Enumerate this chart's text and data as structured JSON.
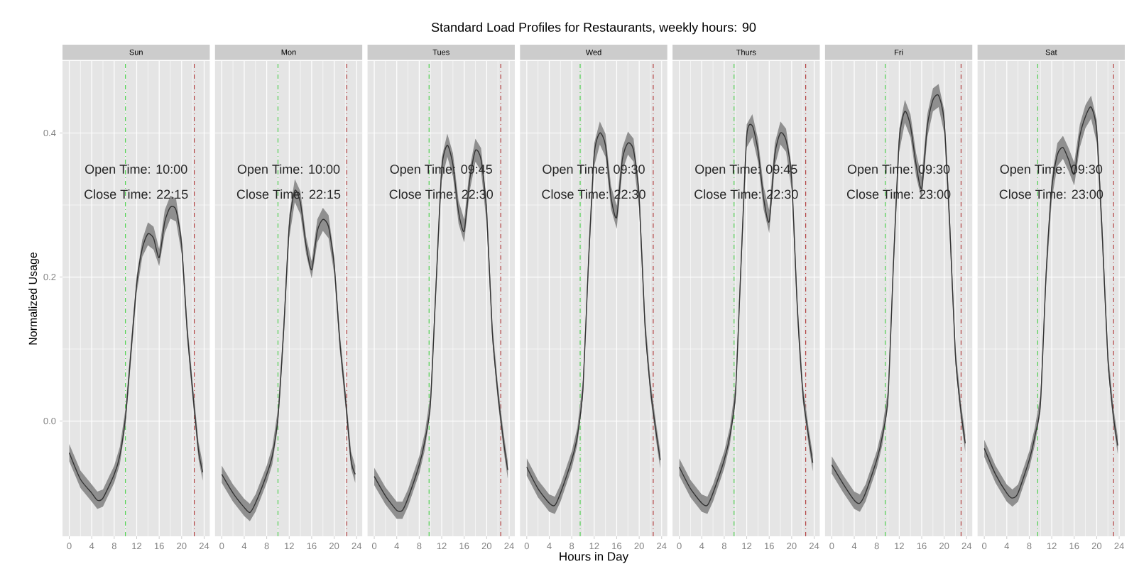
{
  "chart_data": [
    {
      "type": "line",
      "subtitle": "Sun",
      "ylabel": "Normalized Usage",
      "x": [
        0,
        2,
        4,
        5,
        6,
        8,
        9,
        10,
        11,
        12,
        13,
        14,
        15,
        16,
        17,
        18,
        19,
        20,
        21,
        22,
        23,
        23.75
      ],
      "series": [
        {
          "color": "#333333",
          "values": [
            -0.044,
            -0.081,
            -0.1,
            -0.11,
            -0.107,
            -0.074,
            -0.048,
            0.005,
            0.098,
            0.19,
            0.24,
            0.26,
            0.254,
            0.227,
            0.277,
            0.297,
            0.293,
            0.244,
            0.124,
            0.038,
            -0.041,
            -0.071
          ],
          "lower": [
            -0.056,
            -0.093,
            -0.112,
            -0.122,
            -0.119,
            -0.086,
            -0.06,
            -0.007,
            0.086,
            0.178,
            0.228,
            0.244,
            0.238,
            0.215,
            0.261,
            0.281,
            0.277,
            0.232,
            0.112,
            0.026,
            -0.053,
            -0.083
          ],
          "upper": [
            -0.032,
            -0.069,
            -0.088,
            -0.098,
            -0.095,
            -0.062,
            -0.036,
            0.017,
            0.11,
            0.202,
            0.252,
            0.276,
            0.27,
            0.239,
            0.293,
            0.313,
            0.309,
            0.256,
            0.136,
            0.05,
            -0.029,
            -0.059
          ]
        }
      ],
      "xlim": [
        -1.2,
        25
      ],
      "ylim": [
        -0.16,
        0.5
      ],
      "xticks": [
        0,
        4,
        8,
        12,
        16,
        20,
        24
      ],
      "yticks": [
        {
          "value": 0,
          "label": "0.0"
        },
        {
          "value": 0.2,
          "label": "0.2"
        },
        {
          "value": 0.4,
          "label": "0.4"
        }
      ],
      "grid": true,
      "ref_lines": [
        {
          "axis": "x",
          "value": 10,
          "color": "#33cc33",
          "line_style": "dashed"
        },
        {
          "axis": "x",
          "value": 22.25,
          "color": "#aa2222",
          "line_style": "dashed"
        }
      ],
      "annotations": [
        "Open Time: 10:00",
        "Close Time: 22:15"
      ]
    },
    {
      "type": "line",
      "subtitle": "Mon",
      "x": [
        0,
        2,
        4,
        5,
        6,
        8,
        9,
        10,
        11,
        12,
        13,
        14,
        15,
        16,
        17,
        18,
        19,
        20,
        21,
        22,
        23,
        23.75
      ],
      "series": [
        {
          "color": "#333333",
          "values": [
            -0.074,
            -0.1,
            -0.12,
            -0.127,
            -0.114,
            -0.074,
            -0.048,
            0.005,
            0.124,
            0.27,
            0.32,
            0.303,
            0.244,
            0.21,
            0.264,
            0.28,
            0.27,
            0.217,
            0.111,
            0.032,
            -0.054,
            -0.074
          ],
          "lower": [
            -0.086,
            -0.112,
            -0.132,
            -0.139,
            -0.126,
            -0.086,
            -0.06,
            -0.007,
            0.112,
            0.254,
            0.304,
            0.287,
            0.232,
            0.198,
            0.248,
            0.264,
            0.254,
            0.205,
            0.099,
            0.02,
            -0.066,
            -0.086
          ],
          "upper": [
            -0.062,
            -0.088,
            -0.108,
            -0.115,
            -0.102,
            -0.062,
            -0.036,
            0.017,
            0.136,
            0.286,
            0.336,
            0.319,
            0.256,
            0.222,
            0.28,
            0.296,
            0.286,
            0.229,
            0.123,
            0.044,
            -0.042,
            -0.062
          ]
        }
      ],
      "xlim": [
        -1.2,
        25
      ],
      "ylim": [
        -0.16,
        0.5
      ],
      "xticks": [
        0,
        4,
        8,
        12,
        16,
        20,
        24
      ],
      "yticks": [
        0,
        0.2,
        0.4
      ],
      "grid": true,
      "tick_labels": "x",
      "ref_lines": [
        {
          "axis": "x",
          "value": 10,
          "color": "#33cc33",
          "line_style": "dashed"
        },
        {
          "axis": "x",
          "value": 22.25,
          "color": "#aa2222",
          "line_style": "dashed"
        }
      ],
      "annotations": [
        "Open Time: 10:00",
        "Close Time: 22:15"
      ]
    },
    {
      "type": "line",
      "subtitle": "Tues",
      "x": [
        0,
        2,
        4,
        5,
        6,
        8,
        9,
        10,
        11,
        12,
        13,
        14,
        15,
        16,
        17,
        18,
        19,
        20,
        21,
        22,
        23,
        23.75
      ],
      "series": [
        {
          "color": "#333333",
          "values": [
            -0.077,
            -0.104,
            -0.124,
            -0.124,
            -0.107,
            -0.061,
            -0.028,
            0.025,
            0.19,
            0.35,
            0.383,
            0.356,
            0.29,
            0.264,
            0.336,
            0.376,
            0.363,
            0.29,
            0.124,
            0.038,
            -0.028,
            -0.068
          ],
          "lower": [
            -0.089,
            -0.116,
            -0.136,
            -0.136,
            -0.119,
            -0.073,
            -0.04,
            0.013,
            0.178,
            0.334,
            0.367,
            0.34,
            0.274,
            0.248,
            0.32,
            0.36,
            0.347,
            0.274,
            0.112,
            0.026,
            -0.04,
            -0.08
          ],
          "upper": [
            -0.065,
            -0.092,
            -0.112,
            -0.112,
            -0.095,
            -0.049,
            -0.016,
            0.037,
            0.202,
            0.366,
            0.399,
            0.372,
            0.306,
            0.28,
            0.352,
            0.392,
            0.379,
            0.306,
            0.136,
            0.05,
            -0.016,
            -0.056
          ]
        }
      ],
      "xlim": [
        -1.2,
        25
      ],
      "ylim": [
        -0.16,
        0.5
      ],
      "xticks": [
        0,
        4,
        8,
        12,
        16,
        20,
        24
      ],
      "yticks": [
        0,
        0.2,
        0.4
      ],
      "grid": true,
      "tick_labels": "x",
      "ref_lines": [
        {
          "axis": "x",
          "value": 9.75,
          "color": "#33cc33",
          "line_style": "dashed"
        },
        {
          "axis": "x",
          "value": 22.5,
          "color": "#aa2222",
          "line_style": "dashed"
        }
      ],
      "annotations": [
        "Open Time: 09:45",
        "Close Time: 22:30"
      ]
    },
    {
      "type": "line",
      "title": "Standard Load Profiles for Restaurants, weekly hours: 90",
      "subtitle": "Wed",
      "xlabel": "Hours in Day",
      "x": [
        0,
        2,
        4,
        5,
        6,
        8,
        9,
        10,
        11,
        12,
        13,
        14,
        15,
        16,
        17,
        18,
        19,
        20,
        21,
        22,
        23,
        23.75
      ],
      "series": [
        {
          "color": "#333333",
          "values": [
            -0.064,
            -0.094,
            -0.114,
            -0.117,
            -0.1,
            -0.054,
            -0.021,
            0.045,
            0.224,
            0.37,
            0.4,
            0.383,
            0.31,
            0.283,
            0.363,
            0.386,
            0.376,
            0.31,
            0.138,
            0.045,
            -0.015,
            -0.054
          ],
          "lower": [
            -0.076,
            -0.106,
            -0.126,
            -0.129,
            -0.112,
            -0.066,
            -0.033,
            0.033,
            0.212,
            0.354,
            0.384,
            0.367,
            0.294,
            0.267,
            0.347,
            0.37,
            0.36,
            0.294,
            0.126,
            0.033,
            -0.027,
            -0.066
          ],
          "upper": [
            -0.052,
            -0.082,
            -0.102,
            -0.105,
            -0.088,
            -0.042,
            -0.009,
            0.057,
            0.236,
            0.386,
            0.416,
            0.399,
            0.326,
            0.299,
            0.379,
            0.402,
            0.392,
            0.326,
            0.15,
            0.057,
            -0.003,
            -0.042
          ]
        }
      ],
      "xlim": [
        -1.2,
        25
      ],
      "ylim": [
        -0.16,
        0.5
      ],
      "xticks": [
        0,
        4,
        8,
        12,
        16,
        20,
        24
      ],
      "yticks": [
        0,
        0.2,
        0.4
      ],
      "grid": true,
      "tick_labels": "x",
      "ref_lines": [
        {
          "axis": "x",
          "value": 9.5,
          "color": "#33cc33",
          "line_style": "dashed"
        },
        {
          "axis": "x",
          "value": 22.5,
          "color": "#aa2222",
          "line_style": "dashed"
        }
      ],
      "annotations": [
        "Open Time: 09:30",
        "Close Time: 22:30"
      ]
    },
    {
      "type": "line",
      "subtitle": "Thurs",
      "x": [
        0,
        2,
        4,
        5,
        6,
        8,
        9,
        10,
        11,
        12,
        13,
        14,
        15,
        16,
        17,
        18,
        19,
        20,
        21,
        22,
        23,
        23.75
      ],
      "series": [
        {
          "color": "#333333",
          "values": [
            -0.064,
            -0.094,
            -0.114,
            -0.117,
            -0.1,
            -0.054,
            -0.021,
            0.038,
            0.22,
            0.396,
            0.41,
            0.376,
            0.31,
            0.277,
            0.37,
            0.4,
            0.39,
            0.336,
            0.158,
            0.038,
            -0.021,
            -0.058
          ],
          "lower": [
            -0.076,
            -0.106,
            -0.126,
            -0.129,
            -0.112,
            -0.066,
            -0.033,
            0.026,
            0.208,
            0.38,
            0.394,
            0.36,
            0.294,
            0.261,
            0.354,
            0.384,
            0.374,
            0.32,
            0.146,
            0.026,
            -0.033,
            -0.07
          ],
          "upper": [
            -0.052,
            -0.082,
            -0.102,
            -0.105,
            -0.088,
            -0.042,
            -0.009,
            0.05,
            0.232,
            0.412,
            0.426,
            0.392,
            0.326,
            0.293,
            0.386,
            0.416,
            0.406,
            0.352,
            0.17,
            0.05,
            -0.009,
            -0.046
          ]
        }
      ],
      "xlim": [
        -1.2,
        25
      ],
      "ylim": [
        -0.16,
        0.5
      ],
      "xticks": [
        0,
        4,
        8,
        12,
        16,
        20,
        24
      ],
      "yticks": [
        0,
        0.2,
        0.4
      ],
      "grid": true,
      "tick_labels": "x",
      "ref_lines": [
        {
          "axis": "x",
          "value": 9.75,
          "color": "#33cc33",
          "line_style": "dashed"
        },
        {
          "axis": "x",
          "value": 22.5,
          "color": "#aa2222",
          "line_style": "dashed"
        }
      ],
      "annotations": [
        "Open Time: 09:45",
        "Close Time: 22:30"
      ]
    },
    {
      "type": "line",
      "subtitle": "Fri",
      "x": [
        0,
        2,
        4,
        5,
        6,
        8,
        9,
        10,
        11,
        12,
        13,
        14,
        15,
        16,
        17,
        18,
        19,
        20,
        21,
        22,
        23,
        23.75
      ],
      "series": [
        {
          "color": "#333333",
          "values": [
            -0.061,
            -0.087,
            -0.11,
            -0.114,
            -0.1,
            -0.054,
            -0.021,
            0.032,
            0.224,
            0.39,
            0.43,
            0.41,
            0.356,
            0.323,
            0.41,
            0.446,
            0.452,
            0.416,
            0.27,
            0.091,
            0.012,
            -0.031
          ],
          "lower": [
            -0.073,
            -0.099,
            -0.122,
            -0.126,
            -0.112,
            -0.066,
            -0.033,
            0.02,
            0.212,
            0.374,
            0.414,
            0.394,
            0.34,
            0.307,
            0.394,
            0.43,
            0.436,
            0.4,
            0.254,
            0.079,
            0,
            -0.043
          ],
          "upper": [
            -0.049,
            -0.075,
            -0.098,
            -0.102,
            -0.088,
            -0.042,
            -0.009,
            0.044,
            0.236,
            0.406,
            0.446,
            0.426,
            0.372,
            0.339,
            0.426,
            0.462,
            0.468,
            0.432,
            0.286,
            0.103,
            0.024,
            -0.019
          ]
        }
      ],
      "xlim": [
        -1.2,
        25
      ],
      "ylim": [
        -0.16,
        0.5
      ],
      "xticks": [
        0,
        4,
        8,
        12,
        16,
        20,
        24
      ],
      "yticks": [
        0,
        0.2,
        0.4
      ],
      "grid": true,
      "tick_labels": "x",
      "ref_lines": [
        {
          "axis": "x",
          "value": 9.5,
          "color": "#33cc33",
          "line_style": "dashed"
        },
        {
          "axis": "x",
          "value": 23,
          "color": "#aa2222",
          "line_style": "dashed"
        }
      ],
      "annotations": [
        "Open Time: 09:30",
        "Close Time: 23:00"
      ]
    },
    {
      "type": "line",
      "subtitle": "Sat",
      "x": [
        0,
        2,
        4,
        5,
        6,
        8,
        9,
        10,
        11,
        12,
        13,
        14,
        15,
        16,
        17,
        18,
        19,
        20,
        21,
        22,
        23,
        23.75
      ],
      "series": [
        {
          "color": "#333333",
          "values": [
            -0.038,
            -0.074,
            -0.1,
            -0.107,
            -0.1,
            -0.054,
            -0.021,
            0.025,
            0.204,
            0.323,
            0.37,
            0.38,
            0.363,
            0.343,
            0.396,
            0.423,
            0.436,
            0.403,
            0.257,
            0.085,
            0.005,
            -0.034
          ],
          "lower": [
            -0.05,
            -0.086,
            -0.112,
            -0.119,
            -0.112,
            -0.066,
            -0.033,
            0.013,
            0.192,
            0.307,
            0.354,
            0.364,
            0.347,
            0.327,
            0.38,
            0.407,
            0.42,
            0.387,
            0.241,
            0.073,
            -0.007,
            -0.046
          ],
          "upper": [
            -0.026,
            -0.062,
            -0.088,
            -0.095,
            -0.088,
            -0.042,
            -0.009,
            0.037,
            0.216,
            0.339,
            0.386,
            0.396,
            0.379,
            0.359,
            0.412,
            0.439,
            0.452,
            0.419,
            0.273,
            0.097,
            0.017,
            -0.022
          ]
        }
      ],
      "xlim": [
        -1.2,
        25
      ],
      "ylim": [
        -0.16,
        0.5
      ],
      "xticks": [
        0,
        4,
        8,
        12,
        16,
        20,
        24
      ],
      "yticks": [
        0,
        0.2,
        0.4
      ],
      "grid": true,
      "tick_labels": "x",
      "ref_lines": [
        {
          "axis": "x",
          "value": 9.5,
          "color": "#33cc33",
          "line_style": "dashed"
        },
        {
          "axis": "x",
          "value": 23,
          "color": "#aa2222",
          "line_style": "dashed"
        }
      ],
      "annotations": [
        "Open Time: 09:30",
        "Close Time: 23:00"
      ]
    }
  ]
}
